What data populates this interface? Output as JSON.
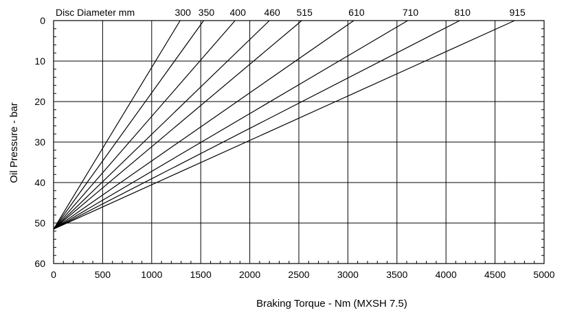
{
  "chart_data": {
    "type": "line",
    "title": "",
    "xlabel": "Braking Torque  - Nm (MXSH 7.5)",
    "ylabel": "Oil Pressure - bar",
    "xlim": [
      0,
      5000
    ],
    "ylim": [
      0,
      60
    ],
    "y_inverted": true,
    "x_ticks": [
      "0",
      "500",
      "1000",
      "1500",
      "2000",
      "2500",
      "3000",
      "3500",
      "4000",
      "4500",
      "5000"
    ],
    "y_ticks": [
      "0",
      "10",
      "20",
      "30",
      "40",
      "50",
      "60"
    ],
    "grid": true,
    "series_header": "Disc Diameter mm",
    "series": [
      {
        "name": "300",
        "x": [
          0,
          1290
        ],
        "y": [
          51.5,
          0
        ]
      },
      {
        "name": "350",
        "x": [
          0,
          1530
        ],
        "y": [
          51.5,
          0
        ]
      },
      {
        "name": "400",
        "x": [
          0,
          1850
        ],
        "y": [
          51.5,
          0
        ]
      },
      {
        "name": "460",
        "x": [
          0,
          2200
        ],
        "y": [
          51.5,
          0
        ]
      },
      {
        "name": "515",
        "x": [
          0,
          2530
        ],
        "y": [
          51.5,
          0
        ]
      },
      {
        "name": "610",
        "x": [
          0,
          3060
        ],
        "y": [
          51.5,
          0
        ]
      },
      {
        "name": "710",
        "x": [
          0,
          3610
        ],
        "y": [
          51.5,
          0
        ]
      },
      {
        "name": "810",
        "x": [
          0,
          4140
        ],
        "y": [
          51.5,
          0
        ]
      },
      {
        "name": "915",
        "x": [
          0,
          4700
        ],
        "y": [
          51.5,
          0
        ]
      }
    ],
    "line_color": "#000000",
    "gridline_color": "#000000"
  }
}
